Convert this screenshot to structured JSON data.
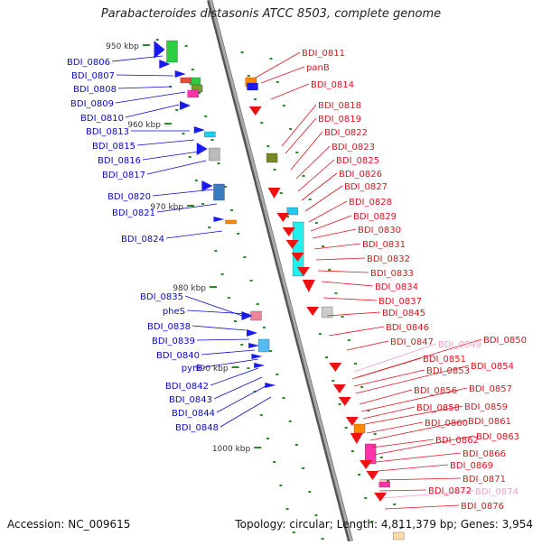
{
  "title": "Parabacteroides distasonis ATCC 8503, complete genome",
  "accession_text": "Accession: NC_009615",
  "summary_text": "Topology: circular; Length: 4,811,379 bp; Genes: 3,954",
  "colors": {
    "left_label": "#0a0ad0",
    "right_label": "#e0141e",
    "faded_label": "#f0a0c8",
    "backbone": "#888888",
    "tick": "#2a8a2a"
  },
  "kbp_labels": [
    "950 kbp",
    "960 kbp",
    "970 kbp",
    "980 kbp",
    "990 kbp",
    "1000 kbp"
  ],
  "left_labels": [
    "BDI_0806",
    "BDI_0807",
    "BDI_0808",
    "BDI_0809",
    "BDI_0810",
    "BDI_0813",
    "BDI_0815",
    "BDI_0816",
    "BDI_0817",
    "BDI_0820",
    "BDI_0821",
    "BDI_0824",
    "BDI_0835",
    "pheS",
    "BDI_0838",
    "BDI_0839",
    "BDI_0840",
    "pyrB",
    "BDI_0842",
    "BDI_0843",
    "BDI_0844",
    "BDI_0848"
  ],
  "right_labels": [
    "BDI_0811",
    "panB",
    "BDI_0814",
    "BDI_0818",
    "BDI_0819",
    "BDI_0822",
    "BDI_0823",
    "BDI_0825",
    "BDI_0826",
    "BDI_0827",
    "BDI_0828",
    "BDI_0829",
    "BDI_0830",
    "BDI_0831",
    "BDI_0832",
    "BDI_0833",
    "BDI_0834",
    "BDI_0837",
    "BDI_0845",
    "BDI_0846",
    "BDI_0847",
    "BDI_0849",
    "BDI_0850",
    "BDI_0851",
    "BDI_0853",
    "BDI_0854",
    "BDI_0856",
    "BDI_0857",
    "BDI_0858",
    "BDI_0859",
    "BDI_0860",
    "BDI_0861",
    "BDI_0862",
    "BDI_0863",
    "BDI_0866",
    "BDI_0869",
    "BDI_0871",
    "BDI_0872",
    "BDI_0874",
    "BDI_0876"
  ]
}
